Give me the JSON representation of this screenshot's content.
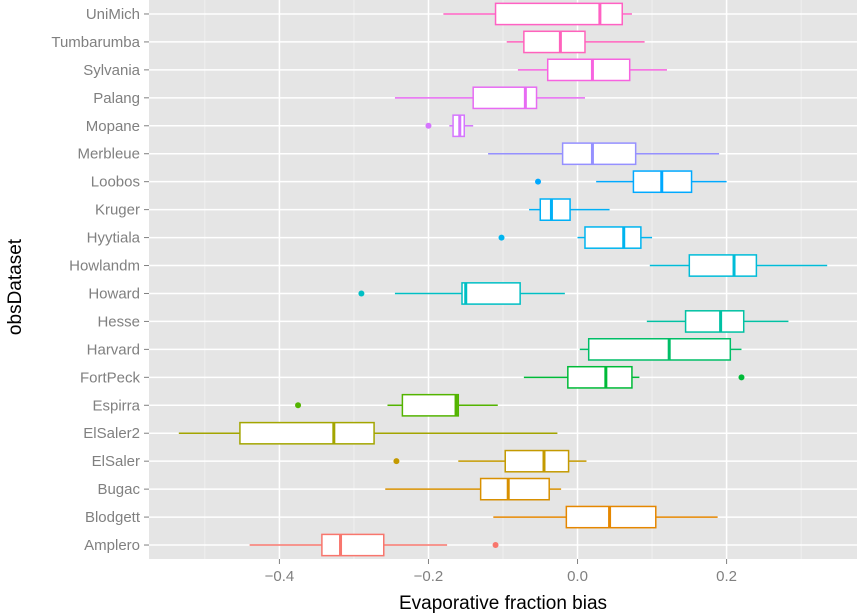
{
  "chart_data": {
    "type": "boxplot",
    "orientation": "horizontal",
    "xlabel": "Evaporative fraction bias",
    "ylabel": "obsDataset",
    "xlim": [
      -0.575,
      0.375
    ],
    "x_ticks": [
      -0.4,
      -0.2,
      0.0,
      0.2
    ],
    "x_tick_labels": [
      "−0.4",
      "−0.2",
      "0.0",
      "0.2"
    ],
    "grid": true,
    "legend": "none",
    "series": [
      {
        "name": "UniMich",
        "color": "#FF61C3",
        "whisker_low": -0.18,
        "q1": -0.11,
        "median": 0.03,
        "q3": 0.06,
        "whisker_high": 0.073,
        "outliers": []
      },
      {
        "name": "Tumbarumba",
        "color": "#FF62BC",
        "whisker_low": -0.095,
        "q1": -0.072,
        "median": -0.023,
        "q3": 0.01,
        "whisker_high": 0.09,
        "outliers": []
      },
      {
        "name": "Sylvania",
        "color": "#F763E0",
        "whisker_low": -0.08,
        "q1": -0.04,
        "median": 0.02,
        "q3": 0.07,
        "whisker_high": 0.12,
        "outliers": []
      },
      {
        "name": "Palang",
        "color": "#E76BF3",
        "whisker_low": -0.245,
        "q1": -0.14,
        "median": -0.07,
        "q3": -0.055,
        "whisker_high": 0.01,
        "outliers": []
      },
      {
        "name": "Mopane",
        "color": "#D575FE",
        "whisker_low": -0.172,
        "q1": -0.167,
        "median": -0.158,
        "q3": -0.152,
        "whisker_high": -0.14,
        "outliers": [
          -0.2
        ]
      },
      {
        "name": "Merbleue",
        "color": "#9590FF",
        "whisker_low": -0.12,
        "q1": -0.02,
        "median": 0.02,
        "q3": 0.078,
        "whisker_high": 0.19,
        "outliers": []
      },
      {
        "name": "Loobos",
        "color": "#00A9FF",
        "whisker_low": 0.025,
        "q1": 0.075,
        "median": 0.113,
        "q3": 0.153,
        "whisker_high": 0.2,
        "outliers": [
          -0.053
        ]
      },
      {
        "name": "Kruger",
        "color": "#00B0F6",
        "whisker_low": -0.065,
        "q1": -0.05,
        "median": -0.035,
        "q3": -0.01,
        "whisker_high": 0.043,
        "outliers": []
      },
      {
        "name": "Hyytiala",
        "color": "#00B4EF",
        "whisker_low": 0.0,
        "q1": 0.01,
        "median": 0.062,
        "q3": 0.085,
        "whisker_high": 0.1,
        "outliers": [
          -0.102
        ]
      },
      {
        "name": "Howlandm",
        "color": "#00BCD8",
        "whisker_low": 0.097,
        "q1": 0.15,
        "median": 0.21,
        "q3": 0.24,
        "whisker_high": 0.335,
        "outliers": []
      },
      {
        "name": "Howard",
        "color": "#00BFC4",
        "whisker_low": -0.245,
        "q1": -0.155,
        "median": -0.15,
        "q3": -0.077,
        "whisker_high": -0.017,
        "outliers": [
          -0.29
        ]
      },
      {
        "name": "Hesse",
        "color": "#00C1A3",
        "whisker_low": 0.093,
        "q1": 0.145,
        "median": 0.192,
        "q3": 0.223,
        "whisker_high": 0.283,
        "outliers": []
      },
      {
        "name": "Harvard",
        "color": "#00BE67",
        "whisker_low": 0.003,
        "q1": 0.015,
        "median": 0.123,
        "q3": 0.205,
        "whisker_high": 0.22,
        "outliers": []
      },
      {
        "name": "FortPeck",
        "color": "#00BA38",
        "whisker_low": -0.072,
        "q1": -0.013,
        "median": 0.038,
        "q3": 0.073,
        "whisker_high": 0.083,
        "outliers": [
          0.22
        ]
      },
      {
        "name": "Espirra",
        "color": "#53B400",
        "whisker_low": -0.255,
        "q1": -0.235,
        "median": -0.163,
        "q3": -0.16,
        "whisker_high": -0.107,
        "outliers": [
          -0.375
        ]
      },
      {
        "name": "ElSaler2",
        "color": "#A3A500",
        "whisker_low": -0.535,
        "q1": -0.453,
        "median": -0.327,
        "q3": -0.273,
        "whisker_high": -0.027,
        "outliers": []
      },
      {
        "name": "ElSaler",
        "color": "#C49A00",
        "whisker_low": -0.16,
        "q1": -0.097,
        "median": -0.045,
        "q3": -0.012,
        "whisker_high": 0.012,
        "outliers": [
          -0.243
        ]
      },
      {
        "name": "Bugac",
        "color": "#D89000",
        "whisker_low": -0.258,
        "q1": -0.13,
        "median": -0.093,
        "q3": -0.038,
        "whisker_high": -0.022,
        "outliers": []
      },
      {
        "name": "Blodgett",
        "color": "#E58700",
        "whisker_low": -0.113,
        "q1": -0.015,
        "median": 0.043,
        "q3": 0.105,
        "whisker_high": 0.188,
        "outliers": []
      },
      {
        "name": "Amplero",
        "color": "#F8766D",
        "whisker_low": -0.44,
        "q1": -0.343,
        "median": -0.318,
        "q3": -0.26,
        "whisker_high": -0.175,
        "outliers": [
          -0.11
        ]
      }
    ]
  }
}
